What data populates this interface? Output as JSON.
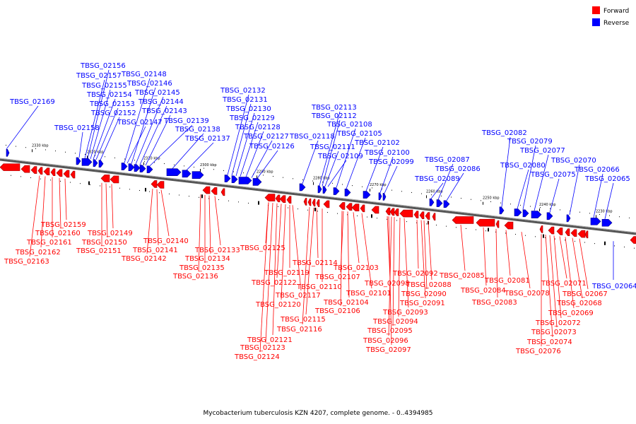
{
  "caption": "Mycobacterium tuberculosis KZN 4207, complete genome. - 0..4394985",
  "legend": [
    {
      "label": "Forward",
      "color": "#ff0000"
    },
    {
      "label": "Reverse",
      "color": "#0000ff"
    }
  ],
  "colors": {
    "forward": "#ff0000",
    "reverse": "#0000ff",
    "backbone": "#777777"
  },
  "scale_labels": [
    "2330 kbp",
    "2320 kbp",
    "2310 kbp",
    "2300 kbp",
    "2290 kbp",
    "2280 kbp",
    "2270 kbp",
    "2260 kbp",
    "2250 kbp",
    "2240 kbp",
    "2230 kbp"
  ],
  "reverse_genes": [
    "TBSG_02169",
    "TBSG_02158",
    "TBSG_02157",
    "TBSG_02156",
    "TBSG_02155",
    "TBSG_02154",
    "TBSG_02153",
    "TBSG_02152",
    "TBSG_02148",
    "TBSG_02147",
    "TBSG_02146",
    "TBSG_02145",
    "TBSG_02144",
    "TBSG_02143",
    "TBSG_02139",
    "TBSG_02138",
    "TBSG_02137",
    "TBSG_02132",
    "TBSG_02131",
    "TBSG_02130",
    "TBSG_02129",
    "TBSG_02128",
    "TBSG_02127",
    "TBSG_02126",
    "TBSG_02118",
    "TBSG_02113",
    "TBSG_02112",
    "TBSG_02111",
    "TBSG_02109",
    "TBSG_02108",
    "TBSG_02105",
    "TBSG_02102",
    "TBSG_02100",
    "TBSG_02099",
    "TBSG_02089",
    "TBSG_02087",
    "TBSG_02086",
    "TBSG_02082",
    "TBSG_02080",
    "TBSG_02079",
    "TBSG_02077",
    "TBSG_02075",
    "TBSG_02070",
    "TBSG_02066",
    "TBSG_02065",
    "TBSG_02064"
  ],
  "forward_genes": [
    "TBSG_02159",
    "TBSG_02160",
    "TBSG_02161",
    "TBSG_02162",
    "TBSG_02163",
    "TBSG_02149",
    "TBSG_02150",
    "TBSG_02151",
    "TBSG_02140",
    "TBSG_02141",
    "TBSG_02142",
    "TBSG_02133",
    "TBSG_02134",
    "TBSG_02135",
    "TBSG_02136",
    "TBSG_02125",
    "TBSG_02122",
    "TBSG_02121",
    "TBSG_02123",
    "TBSG_02124",
    "TBSG_02120",
    "TBSG_02119",
    "TBSG_02117",
    "TBSG_02116",
    "TBSG_02115",
    "TBSG_02114",
    "TBSG_02110",
    "TBSG_02107",
    "TBSG_02106",
    "TBSG_02104",
    "TBSG_02103",
    "TBSG_02101",
    "TBSG_02098",
    "TBSG_02097",
    "TBSG_02096",
    "TBSG_02095",
    "TBSG_02094",
    "TBSG_02093",
    "TBSG_02092",
    "TBSG_02091",
    "TBSG_02090",
    "TBSG_02088",
    "TBSG_02085",
    "TBSG_02084",
    "TBSG_02083",
    "TBSG_02081",
    "TBSG_02078",
    "TBSG_02076",
    "TBSG_02074",
    "TBSG_02073",
    "TBSG_02072",
    "TBSG_02071",
    "TBSG_02069",
    "TBSG_02068",
    "TBSG_02067"
  ]
}
